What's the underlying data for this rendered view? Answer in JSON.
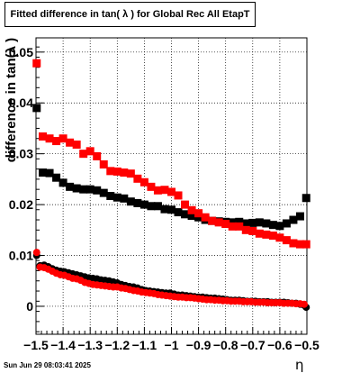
{
  "chart_data": {
    "type": "scatter",
    "title": "Fitted difference in tan( λ ) for Global Rec All EtapT",
    "xlabel": "η",
    "ylabel": "difference in tan(λ )",
    "xlim": [
      -1.5,
      -0.5
    ],
    "ylim": [
      -0.0055,
      0.0528
    ],
    "x_ticks": [
      -1.5,
      -1.4,
      -1.3,
      -1.2,
      -1.1,
      -1.0,
      -0.9,
      -0.8,
      -0.7,
      -0.6,
      -0.5
    ],
    "x_tick_labels": [
      "−1.5",
      "−1.4",
      "−1.3",
      "−1.2",
      "−1.1",
      "−1",
      "−0.9",
      "−0.8",
      "−0.7",
      "−0.6",
      "−0.5"
    ],
    "y_ticks": [
      0,
      0.01,
      0.02,
      0.03,
      0.04,
      0.05
    ],
    "y_tick_labels": [
      "0",
      "0.01",
      "0.02",
      "0.03",
      "0.04",
      "0.05"
    ],
    "grid": true,
    "legend": "none",
    "series": [
      {
        "color": "#000000",
        "marker": "square",
        "x": [
          -1.4975,
          -1.475,
          -1.45,
          -1.425,
          -1.4,
          -1.375,
          -1.35,
          -1.325,
          -1.3,
          -1.275,
          -1.25,
          -1.225,
          -1.2,
          -1.175,
          -1.15,
          -1.125,
          -1.1,
          -1.075,
          -1.05,
          -1.025,
          -1.0,
          -0.975,
          -0.95,
          -0.925,
          -0.9,
          -0.875,
          -0.85,
          -0.825,
          -0.8,
          -0.775,
          -0.75,
          -0.725,
          -0.7,
          -0.675,
          -0.65,
          -0.625,
          -0.6,
          -0.575,
          -0.55,
          -0.525,
          -0.5025
        ],
        "y": [
          0.039,
          0.0263,
          0.0262,
          0.0253,
          0.0243,
          0.0235,
          0.0232,
          0.023,
          0.023,
          0.0228,
          0.0223,
          0.0217,
          0.0214,
          0.0212,
          0.0206,
          0.0203,
          0.02,
          0.0197,
          0.0197,
          0.0191,
          0.019,
          0.0185,
          0.0181,
          0.0178,
          0.0175,
          0.017,
          0.0168,
          0.0167,
          0.0166,
          0.0165,
          0.0166,
          0.0163,
          0.0164,
          0.0165,
          0.0163,
          0.016,
          0.0158,
          0.0163,
          0.017,
          0.0177,
          0.0213
        ]
      },
      {
        "color": "#ff0000",
        "marker": "square",
        "x": [
          -1.4975,
          -1.475,
          -1.45,
          -1.425,
          -1.4,
          -1.375,
          -1.35,
          -1.325,
          -1.3,
          -1.275,
          -1.25,
          -1.225,
          -1.2,
          -1.175,
          -1.15,
          -1.125,
          -1.1,
          -1.075,
          -1.05,
          -1.025,
          -1.0,
          -0.975,
          -0.95,
          -0.925,
          -0.9,
          -0.875,
          -0.85,
          -0.825,
          -0.8,
          -0.775,
          -0.75,
          -0.725,
          -0.7,
          -0.675,
          -0.65,
          -0.625,
          -0.6,
          -0.575,
          -0.55,
          -0.525,
          -0.5025
        ],
        "y": [
          0.0478,
          0.0334,
          0.033,
          0.0325,
          0.033,
          0.0322,
          0.0318,
          0.03,
          0.0305,
          0.0295,
          0.0279,
          0.0266,
          0.0265,
          0.0263,
          0.0261,
          0.0251,
          0.0244,
          0.0235,
          0.0228,
          0.0229,
          0.0225,
          0.0218,
          0.02,
          0.0189,
          0.0183,
          0.0175,
          0.0168,
          0.0165,
          0.0162,
          0.0157,
          0.0157,
          0.015,
          0.0148,
          0.0143,
          0.0141,
          0.0139,
          0.0135,
          0.013,
          0.0124,
          0.0122,
          0.0122
        ]
      },
      {
        "color": "#000000",
        "marker": "circle",
        "x": [
          -1.4975,
          -1.485,
          -1.47,
          -1.455,
          -1.44,
          -1.425,
          -1.41,
          -1.395,
          -1.38,
          -1.365,
          -1.35,
          -1.335,
          -1.32,
          -1.305,
          -1.29,
          -1.275,
          -1.26,
          -1.245,
          -1.23,
          -1.215,
          -1.2,
          -1.185,
          -1.17,
          -1.155,
          -1.14,
          -1.125,
          -1.11,
          -1.095,
          -1.08,
          -1.065,
          -1.05,
          -1.035,
          -1.02,
          -1.005,
          -0.99,
          -0.975,
          -0.96,
          -0.945,
          -0.93,
          -0.915,
          -0.9,
          -0.885,
          -0.87,
          -0.855,
          -0.84,
          -0.825,
          -0.81,
          -0.795,
          -0.78,
          -0.765,
          -0.75,
          -0.735,
          -0.72,
          -0.705,
          -0.69,
          -0.675,
          -0.66,
          -0.645,
          -0.63,
          -0.615,
          -0.6,
          -0.585,
          -0.57,
          -0.555,
          -0.54,
          -0.525,
          -0.51,
          -0.5025
        ],
        "y": [
          0.01,
          0.008,
          0.0081,
          0.0078,
          0.0074,
          0.0071,
          0.0069,
          0.0068,
          0.0066,
          0.0064,
          0.0062,
          0.006,
          0.0058,
          0.0056,
          0.0055,
          0.0054,
          0.0052,
          0.0051,
          0.005,
          0.0048,
          0.0046,
          0.0043,
          0.0041,
          0.0039,
          0.0038,
          0.0036,
          0.0033,
          0.0031,
          0.003,
          0.0029,
          0.0028,
          0.0027,
          0.0026,
          0.0026,
          0.0024,
          0.0022,
          0.0022,
          0.0021,
          0.002,
          0.0019,
          0.0018,
          0.0018,
          0.0017,
          0.0016,
          0.0016,
          0.0015,
          0.0014,
          0.0013,
          0.0012,
          0.0012,
          0.0012,
          0.0011,
          0.001,
          0.001,
          0.001,
          0.0009,
          0.0009,
          0.0009,
          0.0008,
          0.0008,
          0.0008,
          0.0008,
          0.0007,
          0.0006,
          0.0006,
          0.0004,
          0.0002,
          -0.0002
        ]
      },
      {
        "color": "#ff0000",
        "marker": "circle",
        "x": [
          -1.4975,
          -1.485,
          -1.47,
          -1.455,
          -1.44,
          -1.425,
          -1.41,
          -1.395,
          -1.38,
          -1.365,
          -1.35,
          -1.335,
          -1.32,
          -1.305,
          -1.29,
          -1.275,
          -1.26,
          -1.245,
          -1.23,
          -1.215,
          -1.2,
          -1.185,
          -1.17,
          -1.155,
          -1.14,
          -1.125,
          -1.11,
          -1.095,
          -1.08,
          -1.065,
          -1.05,
          -1.035,
          -1.02,
          -1.005,
          -0.99,
          -0.975,
          -0.96,
          -0.945,
          -0.93,
          -0.915,
          -0.9,
          -0.885,
          -0.87,
          -0.855,
          -0.84,
          -0.825,
          -0.81,
          -0.795,
          -0.78,
          -0.765,
          -0.75,
          -0.735,
          -0.72,
          -0.705,
          -0.69,
          -0.675,
          -0.66,
          -0.645,
          -0.63,
          -0.615,
          -0.6,
          -0.585,
          -0.57,
          -0.555,
          -0.54,
          -0.525,
          -0.51
        ],
        "y": [
          0.0106,
          0.0077,
          0.0076,
          0.0073,
          0.0069,
          0.0065,
          0.0062,
          0.0061,
          0.0058,
          0.0055,
          0.0054,
          0.0051,
          0.0047,
          0.0045,
          0.0043,
          0.0042,
          0.0041,
          0.004,
          0.0039,
          0.0038,
          0.0038,
          0.0036,
          0.0035,
          0.0033,
          0.0031,
          0.003,
          0.0028,
          0.0027,
          0.0026,
          0.0025,
          0.0023,
          0.0022,
          0.0021,
          0.002,
          0.0019,
          0.0018,
          0.0018,
          0.0017,
          0.0017,
          0.0016,
          0.0015,
          0.0014,
          0.0013,
          0.0013,
          0.0012,
          0.0012,
          0.0011,
          0.0011,
          0.001,
          0.001,
          0.001,
          0.0009,
          0.0009,
          0.0009,
          0.0008,
          0.0008,
          0.0008,
          0.0007,
          0.0007,
          0.0007,
          0.0007,
          0.0006,
          0.0006,
          0.0006,
          0.0005,
          0.0005,
          0.0004
        ]
      }
    ]
  },
  "footer": {
    "datestamp": "Sun Jun 29 08:03:41 2025"
  }
}
